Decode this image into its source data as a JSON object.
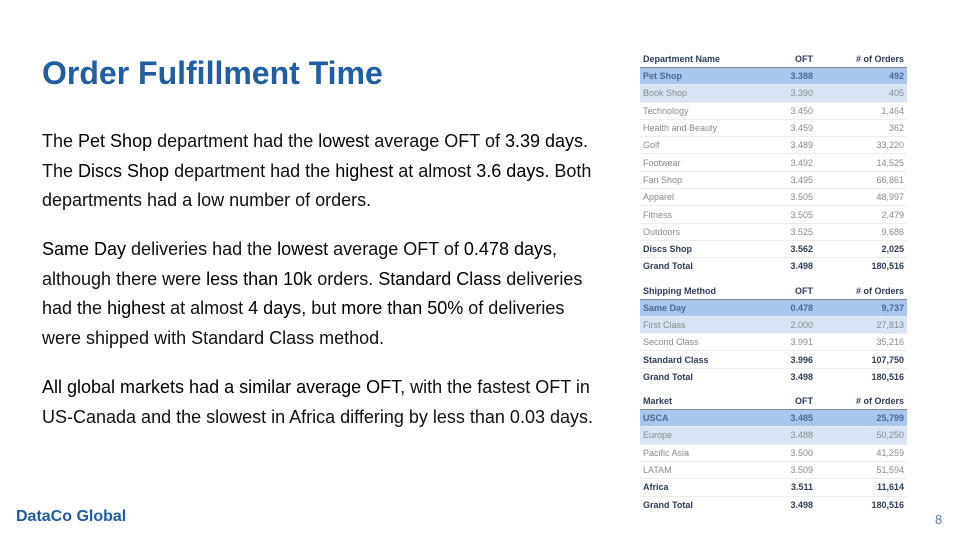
{
  "title": "Order Fulfillment Time",
  "paragraphs": {
    "p1": [
      "The ",
      "Pet Shop",
      " department had the ",
      "lowest",
      " average OFT of ",
      "3.39 days",
      ". The ",
      "Discs Shop",
      " department had the ",
      "highest",
      " at almost ",
      "3.6 days",
      ". Both departments had a low number of orders."
    ],
    "p2": [
      "Same Day",
      " deliveries had the ",
      "lowest",
      " average OFT of ",
      "0.478 days",
      ", although there were ",
      "less than 10k",
      " orders. ",
      "Standard Class",
      " deliveries had the ",
      "highest",
      " at almost ",
      "4 days",
      ", but ",
      "more than 50%",
      " of deliveries were shipped with Standard Class method."
    ],
    "p3": [
      "All global markets had a similar average OFT",
      ", with the fastest OFT in US-Canada and the slowest in Africa differing by less than 0.03 days."
    ]
  },
  "footer": {
    "brand": "DataCo Global",
    "page": "8"
  },
  "tables": {
    "department": {
      "headers": [
        "Department Name",
        "OFT",
        "# of Orders"
      ],
      "rows": [
        [
          "Pet Shop",
          "3.388",
          "492"
        ],
        [
          "Book Shop",
          "3.390",
          "405"
        ],
        [
          "Technology",
          "3.450",
          "1,464"
        ],
        [
          "Health and Beauty",
          "3.459",
          "362"
        ],
        [
          "Golf",
          "3.489",
          "33,220"
        ],
        [
          "Footwear",
          "3.492",
          "14,525"
        ],
        [
          "Fan Shop",
          "3.495",
          "66,861"
        ],
        [
          "Apparel",
          "3.505",
          "48,997"
        ],
        [
          "Fitness",
          "3.505",
          "2,479"
        ],
        [
          "Outdoors",
          "3.525",
          "9,686"
        ],
        [
          "Discs Shop",
          "3.562",
          "2,025"
        ]
      ],
      "total": [
        "Grand Total",
        "3.498",
        "180,516"
      ]
    },
    "shipping": {
      "headers": [
        "Shipping Method",
        "OFT",
        "# of Orders"
      ],
      "rows": [
        [
          "Same Day",
          "0.478",
          "9,737"
        ],
        [
          "First Class",
          "2.000",
          "27,813"
        ],
        [
          "Second Class",
          "3.991",
          "35,216"
        ],
        [
          "Standard Class",
          "3.996",
          "107,750"
        ]
      ],
      "total": [
        "Grand Total",
        "3.498",
        "180,516"
      ]
    },
    "market": {
      "headers": [
        "Market",
        "OFT",
        "# of Orders"
      ],
      "rows": [
        [
          "USCA",
          "3.485",
          "25,799"
        ],
        [
          "Europe",
          "3.488",
          "50,250"
        ],
        [
          "Pacific Asia",
          "3.500",
          "41,259"
        ],
        [
          "LATAM",
          "3.509",
          "51,594"
        ],
        [
          "Africa",
          "3.511",
          "11,614"
        ]
      ],
      "total": [
        "Grand Total",
        "3.498",
        "180,516"
      ]
    }
  }
}
